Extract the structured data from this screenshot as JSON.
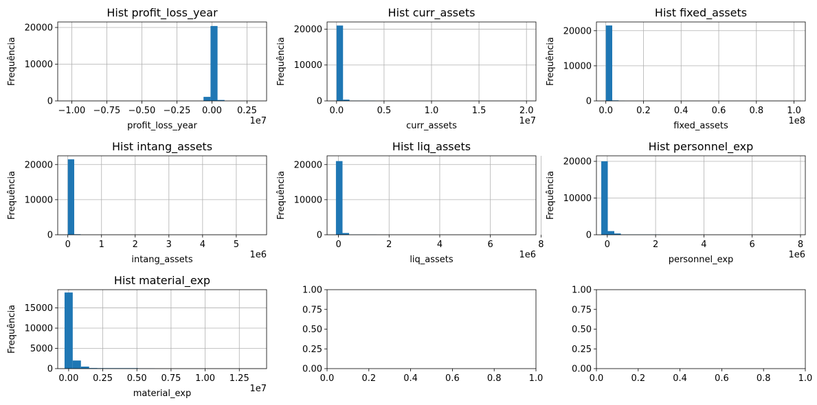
{
  "chart_data": [
    {
      "type": "bar",
      "title": "Hist profit_loss_year",
      "xlabel": "profit_loss_year",
      "ylabel": "Frequência",
      "offset_text": "1e7",
      "grid": true,
      "xlim": [
        -1.1,
        0.39
      ],
      "ylim": [
        0,
        21500
      ],
      "xticks": [
        -1.0,
        -0.75,
        -0.5,
        -0.25,
        0.0,
        0.25
      ],
      "xtick_labels": [
        "−1.00",
        "−0.75",
        "−0.50",
        "−0.25",
        "0.00",
        "0.25"
      ],
      "yticks": [
        0,
        10000,
        20000
      ],
      "ytick_labels": [
        "0",
        "10000",
        "20000"
      ],
      "bins": [
        [
          -0.06,
          -0.01,
          1100
        ],
        [
          -0.01,
          0.04,
          20400
        ],
        [
          0.04,
          0.09,
          250
        ]
      ]
    },
    {
      "type": "bar",
      "title": "Hist curr_assets",
      "xlabel": "curr_assets",
      "ylabel": "Frequência",
      "offset_text": "1e7",
      "grid": true,
      "xlim": [
        -0.1,
        2.1
      ],
      "ylim": [
        0,
        22000
      ],
      "xticks": [
        0.0,
        0.5,
        1.0,
        1.5,
        2.0
      ],
      "xtick_labels": [
        "0.0",
        "0.5",
        "1.0",
        "1.5",
        "2.0"
      ],
      "yticks": [
        0,
        10000,
        20000
      ],
      "ytick_labels": [
        "0",
        "10000",
        "20000"
      ],
      "bins": [
        [
          0.0,
          0.068,
          21000
        ],
        [
          0.068,
          0.136,
          350
        ],
        [
          0.136,
          0.41,
          60
        ]
      ]
    },
    {
      "type": "bar",
      "title": "Hist fixed_assets",
      "xlabel": "fixed_assets",
      "ylabel": "Frequência",
      "offset_text": "1e8",
      "grid": true,
      "xlim": [
        -0.05,
        1.06
      ],
      "ylim": [
        0,
        22500
      ],
      "xticks": [
        0.0,
        0.2,
        0.4,
        0.6,
        0.8,
        1.0
      ],
      "xtick_labels": [
        "0.0",
        "0.2",
        "0.4",
        "0.6",
        "0.8",
        "1.0"
      ],
      "yticks": [
        0,
        10000,
        20000
      ],
      "ytick_labels": [
        "0",
        "10000",
        "20000"
      ],
      "bins": [
        [
          0.0,
          0.034,
          21500
        ],
        [
          0.034,
          0.068,
          150
        ],
        [
          0.068,
          0.1,
          40
        ]
      ]
    },
    {
      "type": "bar",
      "title": "Hist intang_assets",
      "xlabel": "intang_assets",
      "ylabel": "Frequência",
      "offset_text": "1e6",
      "grid": true,
      "xlim": [
        -0.3,
        5.9
      ],
      "ylim": [
        0,
        22500
      ],
      "xticks": [
        0,
        1,
        2,
        3,
        4,
        5
      ],
      "xtick_labels": [
        "0",
        "1",
        "2",
        "3",
        "4",
        "5"
      ],
      "yticks": [
        0,
        10000,
        20000
      ],
      "ytick_labels": [
        "0",
        "10000",
        "20000"
      ],
      "bins": [
        [
          0.0,
          0.19,
          21500
        ],
        [
          0.19,
          0.38,
          150
        ]
      ]
    },
    {
      "type": "bar",
      "title": "Hist liq_assets",
      "xlabel": "liq_assets",
      "ylabel": "Frequência",
      "offset_text": "1e6",
      "grid": true,
      "xlim": [
        -0.45,
        7.8
      ],
      "ylim": [
        0,
        22500
      ],
      "xticks": [
        0,
        2,
        4,
        6,
        8
      ],
      "xtick_labels": [
        "0",
        "2",
        "4",
        "6",
        "8"
      ],
      "yticks": [
        0,
        10000,
        20000
      ],
      "ytick_labels": [
        "0",
        "10000",
        "20000"
      ],
      "bins": [
        [
          -0.1,
          0.16,
          21000
        ],
        [
          0.16,
          0.42,
          500
        ],
        [
          0.42,
          1.5,
          60
        ]
      ]
    },
    {
      "type": "bar",
      "title": "Hist personnel_exp",
      "xlabel": "personnel_exp",
      "ylabel": "Frequência",
      "offset_text": "1e6",
      "grid": true,
      "xlim": [
        -0.45,
        8.2
      ],
      "ylim": [
        0,
        21500
      ],
      "xticks": [
        0,
        2,
        4,
        6,
        8
      ],
      "xtick_labels": [
        "0",
        "2",
        "4",
        "6",
        "8"
      ],
      "yticks": [
        0,
        10000,
        20000
      ],
      "ytick_labels": [
        "0",
        "10000",
        "20000"
      ],
      "bins": [
        [
          -0.25,
          0.02,
          20000
        ],
        [
          0.02,
          0.29,
          1000
        ],
        [
          0.29,
          0.56,
          350
        ],
        [
          0.56,
          2.2,
          70
        ]
      ]
    },
    {
      "type": "bar",
      "title": "Hist material_exp",
      "xlabel": "material_exp",
      "ylabel": "Frequência",
      "offset_text": "1e7",
      "grid": true,
      "xlim": [
        -0.08,
        1.45
      ],
      "ylim": [
        0,
        19500
      ],
      "xticks": [
        0.0,
        0.25,
        0.5,
        0.75,
        1.0,
        1.25
      ],
      "xtick_labels": [
        "0.00",
        "0.25",
        "0.50",
        "0.75",
        "1.00",
        "1.25"
      ],
      "yticks": [
        0,
        5000,
        10000,
        15000
      ],
      "ytick_labels": [
        "0",
        "5000",
        "10000",
        "15000"
      ],
      "bins": [
        [
          -0.03,
          0.03,
          18800
        ],
        [
          0.03,
          0.09,
          2000
        ],
        [
          0.09,
          0.15,
          500
        ],
        [
          0.15,
          0.21,
          150
        ],
        [
          0.21,
          0.51,
          120
        ],
        [
          0.51,
          0.63,
          60
        ]
      ]
    },
    {
      "type": "bar",
      "title": "",
      "xlabel": "",
      "ylabel": "",
      "offset_text": "",
      "grid": false,
      "xlim": [
        0,
        1
      ],
      "ylim": [
        0,
        1
      ],
      "xticks": [
        0,
        0.2,
        0.4,
        0.6,
        0.8,
        1.0
      ],
      "xtick_labels": [
        "0.0",
        "0.2",
        "0.4",
        "0.6",
        "0.8",
        "1.0"
      ],
      "yticks": [
        0,
        0.25,
        0.5,
        0.75,
        1.0
      ],
      "ytick_labels": [
        "0.00",
        "0.25",
        "0.50",
        "0.75",
        "1.00"
      ],
      "bins": []
    },
    {
      "type": "bar",
      "title": "",
      "xlabel": "",
      "ylabel": "",
      "offset_text": "",
      "grid": false,
      "xlim": [
        0,
        1
      ],
      "ylim": [
        0,
        1
      ],
      "xticks": [
        0,
        0.2,
        0.4,
        0.6,
        0.8,
        1.0
      ],
      "xtick_labels": [
        "0.0",
        "0.2",
        "0.4",
        "0.6",
        "0.8",
        "1.0"
      ],
      "yticks": [
        0,
        0.25,
        0.5,
        0.75,
        1.0
      ],
      "ytick_labels": [
        "0.00",
        "0.25",
        "0.50",
        "0.75",
        "1.00"
      ],
      "bins": []
    }
  ],
  "colors": {
    "bar": "#1f77b4",
    "grid": "#b0b0b0"
  }
}
